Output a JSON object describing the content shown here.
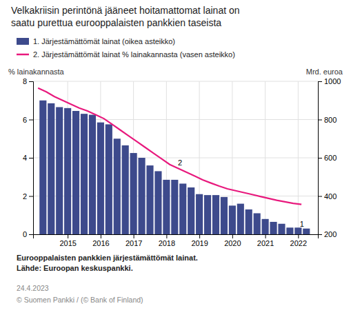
{
  "chart_data": {
    "type": "bar",
    "title": "Velkakriisin perintönä jääneet hoitamattomat lainat on\nsaatu purettua eurooppalaisten pankkien taseista",
    "ylabel": "% lainakannasta",
    "y2label": "Mrd. euroa",
    "series": [
      {
        "name": "1. Järjestämättömät lainat (oikea asteikko)",
        "type": "bar",
        "color": "#3d4a8c",
        "x": [
          2014.25,
          2014.5,
          2014.75,
          2015.0,
          2015.25,
          2015.5,
          2015.75,
          2016.0,
          2016.25,
          2016.5,
          2016.75,
          2017.0,
          2017.25,
          2017.5,
          2017.75,
          2018.0,
          2018.25,
          2018.5,
          2018.75,
          2019.0,
          2019.25,
          2019.5,
          2019.75,
          2020.0,
          2020.25,
          2020.5,
          2020.75,
          2021.0,
          2021.25,
          2021.5,
          2021.75,
          2022.0,
          2022.25
        ],
        "values": [
          7.0,
          6.85,
          6.65,
          6.6,
          6.45,
          6.3,
          6.25,
          5.85,
          5.75,
          5.0,
          4.65,
          4.25,
          4.0,
          3.6,
          3.3,
          2.85,
          2.85,
          2.65,
          2.45,
          2.1,
          2.05,
          2.05,
          1.95,
          1.5,
          1.6,
          1.3,
          1.1,
          0.8,
          0.65,
          0.55,
          0.35,
          0.35,
          0.3
        ]
      },
      {
        "name": "2. Järjestämättömät lainat % lainakannasta (vasen asteikko)",
        "type": "line",
        "color": "#e8197d",
        "axis": "y2",
        "x": [
          2014.1,
          2014.35,
          2014.6,
          2014.85,
          2015.1,
          2015.35,
          2015.6,
          2015.85,
          2016.1,
          2016.35,
          2016.6,
          2016.85,
          2017.1,
          2017.35,
          2017.6,
          2017.85,
          2018.1,
          2018.35,
          2018.6,
          2018.85,
          2019.1,
          2019.35,
          2019.6,
          2019.85,
          2020.1,
          2020.35,
          2020.6,
          2020.85,
          2021.1,
          2021.35,
          2021.6,
          2021.85,
          2022.1
        ],
        "values": [
          965,
          945,
          920,
          900,
          880,
          860,
          845,
          825,
          805,
          775,
          745,
          715,
          685,
          655,
          625,
          595,
          565,
          545,
          525,
          505,
          485,
          468,
          452,
          438,
          428,
          418,
          408,
          398,
          388,
          378,
          370,
          362,
          356
        ]
      }
    ],
    "xlim": [
      2013.95,
      2022.6
    ],
    "xticks": [
      2015,
      2016,
      2017,
      2018,
      2019,
      2020,
      2021,
      2022
    ],
    "ylim": [
      0,
      8
    ],
    "yticks": [
      0,
      2,
      4,
      6,
      8
    ],
    "y2lim": [
      200,
      1000
    ],
    "y2ticks": [
      200,
      400,
      600,
      800,
      1000
    ],
    "grid": true,
    "legend": "top",
    "annotations": [
      {
        "text": "2",
        "x": 2018.35,
        "y": 3.6
      },
      {
        "text": "1",
        "x": 2022.05,
        "y": 0.38
      }
    ],
    "footnote": "Eurooppalaisten pankkien järjestämättömät lainat.\nLähde: Euroopan keskuspankki.",
    "date": "24.4.2023",
    "copyright": "© Suomen Pankki / (© Bank of Finland)"
  }
}
